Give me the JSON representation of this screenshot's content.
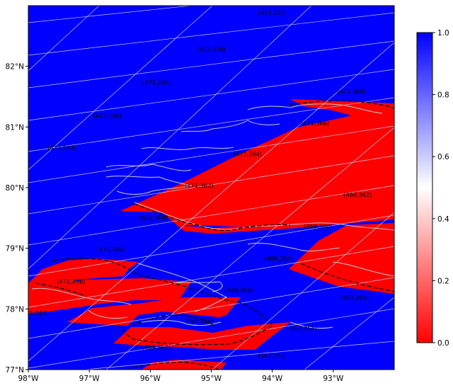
{
  "map": {
    "lon_ticks": [
      {
        "lon": -98,
        "label": "98°W"
      },
      {
        "lon": -97,
        "label": "97°W"
      },
      {
        "lon": -96,
        "label": "96°W"
      },
      {
        "lon": -95,
        "label": "95°W"
      },
      {
        "lon": -94,
        "label": "94°W"
      },
      {
        "lon": -93,
        "label": "93°W"
      }
    ],
    "lat_ticks": [
      {
        "lat": 77,
        "label": "77°N"
      },
      {
        "lat": 78,
        "label": "78°N"
      },
      {
        "lat": 79,
        "label": "79°N"
      },
      {
        "lat": 80,
        "label": "80°N"
      },
      {
        "lat": 81,
        "label": "81°N"
      },
      {
        "lat": 82,
        "label": "82°N"
      }
    ],
    "extent": {
      "lon_min": -98,
      "lon_max": -92,
      "lat_min": 77,
      "lat_max": 83
    },
    "colors": {
      "high": "#0000ff",
      "mid": "#ffffff",
      "low": "#ff0000",
      "coastline": "#c8c8c8",
      "gridline": "#d0d0e8",
      "boundary": "#000000"
    },
    "tile_labels": [
      {
        "text": "(473,372)",
        "lon": -94.0,
        "lat": 82.85
      },
      {
        "text": "(473,370)",
        "lon": -95.0,
        "lat": 82.25
      },
      {
        "text": "(473,368)",
        "lon": -95.9,
        "lat": 81.7
      },
      {
        "text": "(473,366)",
        "lon": -96.7,
        "lat": 81.15
      },
      {
        "text": "(473,364)",
        "lon": -97.45,
        "lat": 80.62
      },
      {
        "text": "(471,368)",
        "lon": -92.7,
        "lat": 81.55
      },
      {
        "text": "(471,366)",
        "lon": -93.3,
        "lat": 81.03
      },
      {
        "text": "(471,364)",
        "lon": -94.4,
        "lat": 80.52
      },
      {
        "text": "(471,362)",
        "lon": -95.2,
        "lat": 80.0
      },
      {
        "text": "(471,360)",
        "lon": -95.95,
        "lat": 79.47
      },
      {
        "text": "(471,358)",
        "lon": -96.65,
        "lat": 78.95
      },
      {
        "text": "(471,356)",
        "lon": -97.3,
        "lat": 78.42
      },
      {
        "text": "(471,354)",
        "lon": -97.9,
        "lat": 77.9
      },
      {
        "text": "(469,362)",
        "lon": -92.6,
        "lat": 79.85
      },
      {
        "text": "(469,360)",
        "lon": -93.25,
        "lat": 79.33
      },
      {
        "text": "(469,358)",
        "lon": -93.9,
        "lat": 78.8
      },
      {
        "text": "(469,356)",
        "lon": -94.55,
        "lat": 78.28
      },
      {
        "text": "(469,354)",
        "lon": -95.2,
        "lat": 77.77
      },
      {
        "text": "(469,352)",
        "lon": -95.9,
        "lat": 77.33
      },
      {
        "text": "(467,358)",
        "lon": -92.65,
        "lat": 78.15
      },
      {
        "text": "(467,354)",
        "lon": -93.5,
        "lat": 77.65
      },
      {
        "text": "(467,352)",
        "lon": -94.0,
        "lat": 77.2
      }
    ]
  },
  "colorbar": {
    "ticks": [
      {
        "value": 0.0,
        "label": "0.0"
      },
      {
        "value": 0.2,
        "label": "0.2"
      },
      {
        "value": 0.4,
        "label": "0.4"
      },
      {
        "value": 0.6,
        "label": "0.6"
      },
      {
        "value": 0.8,
        "label": "0.8"
      },
      {
        "value": 1.0,
        "label": "1.0"
      }
    ]
  }
}
